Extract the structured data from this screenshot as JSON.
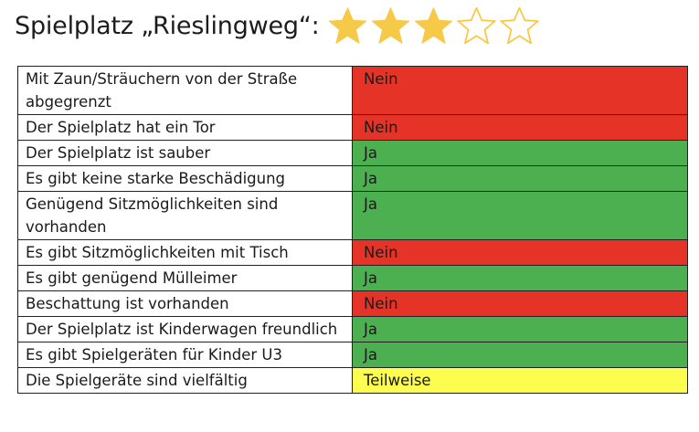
{
  "title": "Spielplatz „Rieslingweg“:",
  "rating": {
    "value": 3,
    "max": 5,
    "filled_color": "#F7C948",
    "empty_color": "#F7C948"
  },
  "status_colors": {
    "Nein": "#E53427",
    "Ja": "#4CAF50",
    "Teilweise": "#FDFD50"
  },
  "rows": [
    {
      "criterion": "Mit Zaun/Sträuchern von der Straße abgegrenzt",
      "value": "Nein"
    },
    {
      "criterion": "Der Spielplatz hat ein Tor",
      "value": "Nein"
    },
    {
      "criterion": "Der Spielplatz ist sauber",
      "value": "Ja"
    },
    {
      "criterion": "Es gibt keine starke Beschädigung",
      "value": "Ja"
    },
    {
      "criterion": "Genügend Sitzmöglichkeiten sind vorhanden",
      "value": "Ja"
    },
    {
      "criterion": "Es gibt Sitzmöglichkeiten mit Tisch",
      "value": "Nein"
    },
    {
      "criterion": "Es gibt genügend Mülleimer",
      "value": "Ja"
    },
    {
      "criterion": "Beschattung ist vorhanden",
      "value": "Nein"
    },
    {
      "criterion": "Der Spielplatz ist Kinderwagen freundlich",
      "value": "Ja"
    },
    {
      "criterion": "Es gibt Spielgeräten für Kinder U3",
      "value": "Ja"
    },
    {
      "criterion": "Die Spielgeräte sind vielfältig",
      "value": "Teilweise"
    }
  ]
}
